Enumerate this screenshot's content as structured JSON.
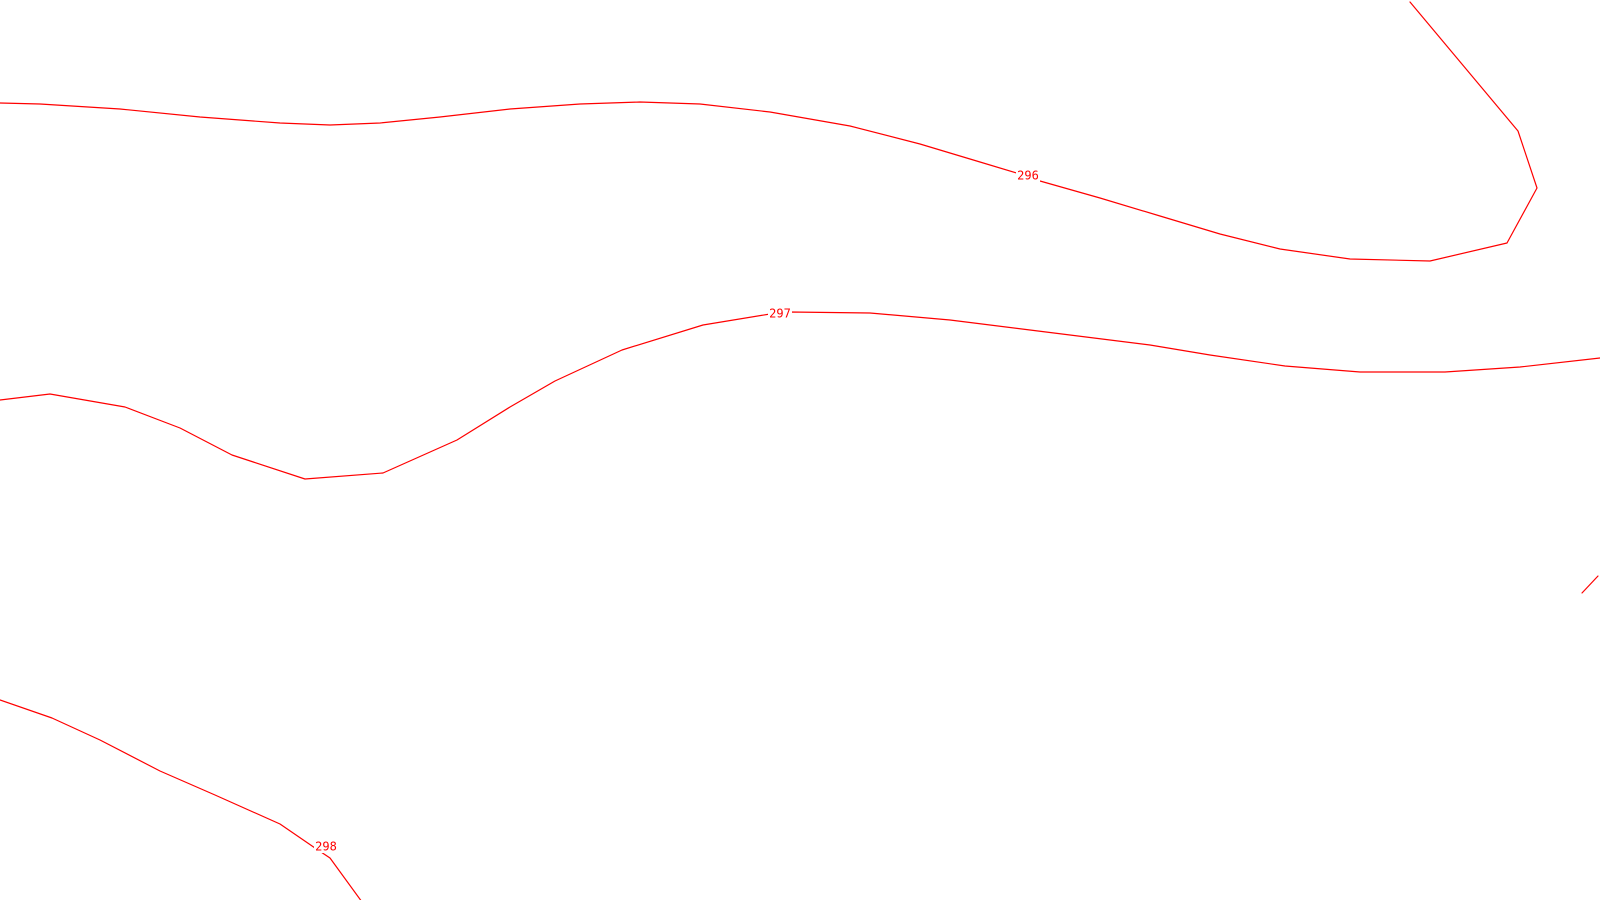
{
  "map": {
    "background_color": "#ffffff",
    "contour_color": "#ff0000",
    "contours": [
      {
        "elevation_label": "296"
      },
      {
        "elevation_label": "297"
      },
      {
        "elevation_label": "298"
      },
      {
        "elevation_label": ""
      }
    ]
  }
}
